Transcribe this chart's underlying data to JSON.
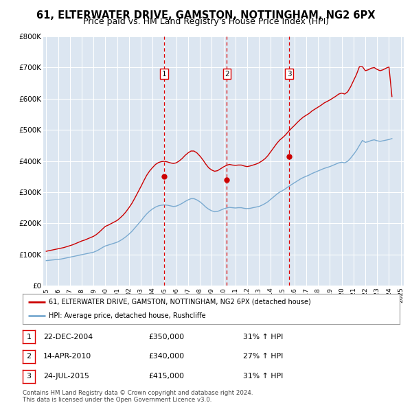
{
  "title": "61, ELTERWATER DRIVE, GAMSTON, NOTTINGHAM, NG2 6PX",
  "subtitle": "Price paid vs. HM Land Registry's House Price Index (HPI)",
  "title_fontsize": 10.5,
  "subtitle_fontsize": 9,
  "background_color": "#ffffff",
  "plot_bg_color": "#dce6f1",
  "grid_color": "#ffffff",
  "ylim": [
    0,
    800000
  ],
  "yticks": [
    0,
    100000,
    200000,
    300000,
    400000,
    500000,
    600000,
    700000,
    800000
  ],
  "ytick_labels": [
    "£0",
    "£100K",
    "£200K",
    "£300K",
    "£400K",
    "£500K",
    "£600K",
    "£700K",
    "£800K"
  ],
  "sale_year_floats": [
    2004.98,
    2010.29,
    2015.56
  ],
  "sale_prices": [
    350000,
    340000,
    415000
  ],
  "sale_labels": [
    "1",
    "2",
    "3"
  ],
  "vline_color": "#dd0000",
  "red_line_color": "#cc0000",
  "blue_line_color": "#7aaad0",
  "legend_entries": [
    "61, ELTERWATER DRIVE, GAMSTON, NOTTINGHAM, NG2 6PX (detached house)",
    "HPI: Average price, detached house, Rushcliffe"
  ],
  "table_rows": [
    {
      "num": "1",
      "date": "22-DEC-2004",
      "price": "£350,000",
      "hpi": "31% ↑ HPI"
    },
    {
      "num": "2",
      "date": "14-APR-2010",
      "price": "£340,000",
      "hpi": "27% ↑ HPI"
    },
    {
      "num": "3",
      "date": "24-JUL-2015",
      "price": "£415,000",
      "hpi": "31% ↑ HPI"
    }
  ],
  "footer": "Contains HM Land Registry data © Crown copyright and database right 2024.\nThis data is licensed under the Open Government Licence v3.0.",
  "hpi_years": [
    1995.0,
    1995.25,
    1995.5,
    1995.75,
    1996.0,
    1996.25,
    1996.5,
    1996.75,
    1997.0,
    1997.25,
    1997.5,
    1997.75,
    1998.0,
    1998.25,
    1998.5,
    1998.75,
    1999.0,
    1999.25,
    1999.5,
    1999.75,
    2000.0,
    2000.25,
    2000.5,
    2000.75,
    2001.0,
    2001.25,
    2001.5,
    2001.75,
    2002.0,
    2002.25,
    2002.5,
    2002.75,
    2003.0,
    2003.25,
    2003.5,
    2003.75,
    2004.0,
    2004.25,
    2004.5,
    2004.75,
    2005.0,
    2005.25,
    2005.5,
    2005.75,
    2006.0,
    2006.25,
    2006.5,
    2006.75,
    2007.0,
    2007.25,
    2007.5,
    2007.75,
    2008.0,
    2008.25,
    2008.5,
    2008.75,
    2009.0,
    2009.25,
    2009.5,
    2009.75,
    2010.0,
    2010.25,
    2010.5,
    2010.75,
    2011.0,
    2011.25,
    2011.5,
    2011.75,
    2012.0,
    2012.25,
    2012.5,
    2012.75,
    2013.0,
    2013.25,
    2013.5,
    2013.75,
    2014.0,
    2014.25,
    2014.5,
    2014.75,
    2015.0,
    2015.25,
    2015.5,
    2015.75,
    2016.0,
    2016.25,
    2016.5,
    2016.75,
    2017.0,
    2017.25,
    2017.5,
    2017.75,
    2018.0,
    2018.25,
    2018.5,
    2018.75,
    2019.0,
    2019.25,
    2019.5,
    2019.75,
    2020.0,
    2020.25,
    2020.5,
    2020.75,
    2021.0,
    2021.25,
    2021.5,
    2021.75,
    2022.0,
    2022.25,
    2022.5,
    2022.75,
    2023.0,
    2023.25,
    2023.5,
    2023.75,
    2024.0,
    2024.25
  ],
  "hpi_values": [
    80000,
    81000,
    82000,
    83000,
    84000,
    85000,
    87000,
    89000,
    91000,
    93000,
    95000,
    97000,
    99000,
    101000,
    103000,
    105000,
    107000,
    111000,
    116000,
    122000,
    127000,
    130000,
    133000,
    136000,
    139000,
    144000,
    150000,
    157000,
    165000,
    174000,
    185000,
    196000,
    207000,
    219000,
    230000,
    239000,
    246000,
    252000,
    256000,
    258000,
    259000,
    258000,
    256000,
    254000,
    255000,
    259000,
    264000,
    270000,
    275000,
    279000,
    279000,
    275000,
    269000,
    261000,
    252000,
    245000,
    240000,
    237000,
    238000,
    242000,
    246000,
    249000,
    251000,
    250000,
    249000,
    250000,
    250000,
    248000,
    247000,
    248000,
    250000,
    252000,
    254000,
    258000,
    263000,
    269000,
    277000,
    285000,
    293000,
    300000,
    305000,
    311000,
    318000,
    324000,
    330000,
    336000,
    342000,
    347000,
    351000,
    355000,
    360000,
    364000,
    368000,
    372000,
    376000,
    379000,
    382000,
    386000,
    390000,
    394000,
    396000,
    394000,
    399000,
    409000,
    421000,
    434000,
    450000,
    466000,
    460000,
    462000,
    466000,
    468000,
    465000,
    463000,
    465000,
    467000,
    469000,
    472000
  ],
  "red_years": [
    1995.0,
    1995.25,
    1995.5,
    1995.75,
    1996.0,
    1996.25,
    1996.5,
    1996.75,
    1997.0,
    1997.25,
    1997.5,
    1997.75,
    1998.0,
    1998.25,
    1998.5,
    1998.75,
    1999.0,
    1999.25,
    1999.5,
    1999.75,
    2000.0,
    2000.25,
    2000.5,
    2000.75,
    2001.0,
    2001.25,
    2001.5,
    2001.75,
    2002.0,
    2002.25,
    2002.5,
    2002.75,
    2003.0,
    2003.25,
    2003.5,
    2003.75,
    2004.0,
    2004.25,
    2004.5,
    2004.75,
    2005.0,
    2005.25,
    2005.5,
    2005.75,
    2006.0,
    2006.25,
    2006.5,
    2006.75,
    2007.0,
    2007.25,
    2007.5,
    2007.75,
    2008.0,
    2008.25,
    2008.5,
    2008.75,
    2009.0,
    2009.25,
    2009.5,
    2009.75,
    2010.0,
    2010.25,
    2010.5,
    2010.75,
    2011.0,
    2011.25,
    2011.5,
    2011.75,
    2012.0,
    2012.25,
    2012.5,
    2012.75,
    2013.0,
    2013.25,
    2013.5,
    2013.75,
    2014.0,
    2014.25,
    2014.5,
    2014.75,
    2015.0,
    2015.25,
    2015.5,
    2015.75,
    2016.0,
    2016.25,
    2016.5,
    2016.75,
    2017.0,
    2017.25,
    2017.5,
    2017.75,
    2018.0,
    2018.25,
    2018.5,
    2018.75,
    2019.0,
    2019.25,
    2019.5,
    2019.75,
    2020.0,
    2020.25,
    2020.5,
    2020.75,
    2021.0,
    2021.25,
    2021.5,
    2021.75,
    2022.0,
    2022.25,
    2022.5,
    2022.75,
    2023.0,
    2023.25,
    2023.5,
    2023.75,
    2024.0,
    2024.25
  ],
  "red_values": [
    110000,
    112000,
    114000,
    116000,
    118000,
    120000,
    122000,
    125000,
    128000,
    131000,
    135000,
    139000,
    143000,
    146000,
    150000,
    154000,
    158000,
    164000,
    172000,
    181000,
    190000,
    194000,
    199000,
    204000,
    209000,
    217000,
    226000,
    237000,
    250000,
    264000,
    281000,
    299000,
    317000,
    336000,
    354000,
    368000,
    379000,
    389000,
    395000,
    398000,
    399000,
    397000,
    394000,
    392000,
    394000,
    400000,
    408000,
    418000,
    426000,
    432000,
    432000,
    426000,
    416000,
    404000,
    390000,
    378000,
    371000,
    367000,
    369000,
    375000,
    381000,
    386000,
    389000,
    387000,
    386000,
    387000,
    387000,
    384000,
    382000,
    384000,
    387000,
    390000,
    394000,
    400000,
    407000,
    417000,
    430000,
    443000,
    456000,
    467000,
    475000,
    484000,
    495000,
    505000,
    514000,
    524000,
    533000,
    541000,
    547000,
    553000,
    561000,
    567000,
    573000,
    579000,
    586000,
    591000,
    596000,
    602000,
    608000,
    615000,
    618000,
    615000,
    622000,
    638000,
    658000,
    678000,
    703000,
    703000,
    690000,
    693000,
    698000,
    700000,
    694000,
    690000,
    693000,
    698000,
    702000,
    607000
  ]
}
